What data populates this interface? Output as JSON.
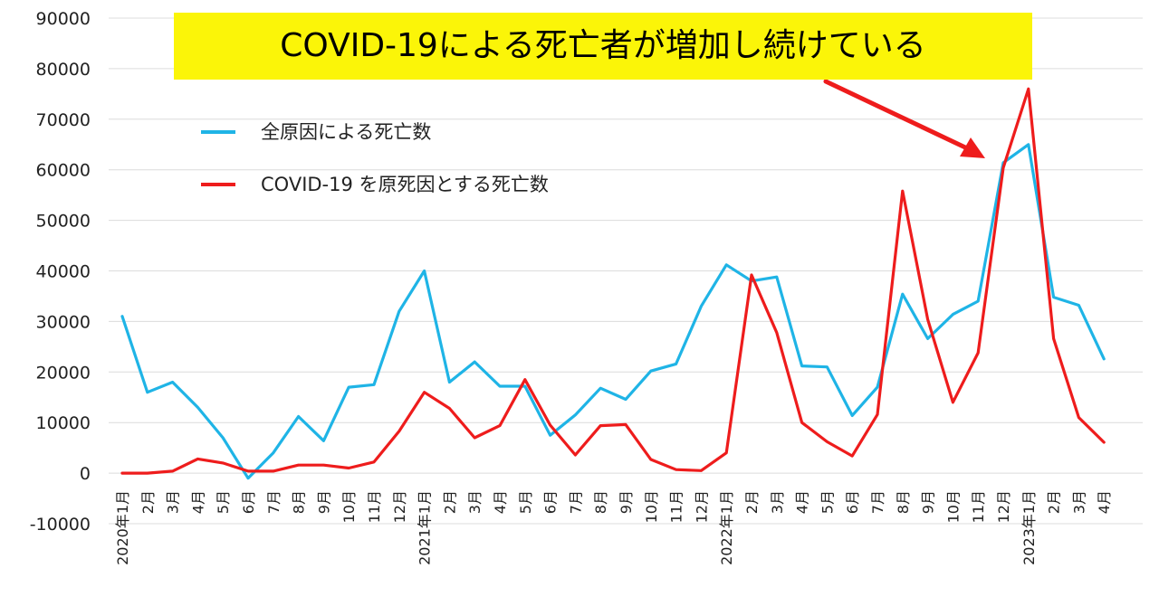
{
  "headline": "COVID-19による死亡者が増加し続けている",
  "colors": {
    "all_cause": "#1fb4e6",
    "covid": "#ee1c1c",
    "banner": "#fbf508",
    "arrow": "#ee1c1c"
  },
  "chart_data": {
    "type": "line",
    "title": "",
    "xlabel": "",
    "ylabel": "",
    "ylim": [
      -10000,
      90000
    ],
    "yticks": [
      "90000",
      "80000",
      "70000",
      "60000",
      "50000",
      "40000",
      "30000",
      "20000",
      "10000",
      "0",
      "-10000"
    ],
    "grid": true,
    "legend_position": "upper-left",
    "categories": [
      "2020年1月",
      "2月",
      "3月",
      "4月",
      "5月",
      "6月",
      "7月",
      "8月",
      "9月",
      "10月",
      "11月",
      "12月",
      "2021年1月",
      "2月",
      "3月",
      "4月",
      "5月",
      "6月",
      "7月",
      "8月",
      "9月",
      "10月",
      "11月",
      "12月",
      "2022年1月",
      "2月",
      "3月",
      "4月",
      "5月",
      "6月",
      "7月",
      "8月",
      "9月",
      "10月",
      "11月",
      "12月",
      "2023年1月",
      "2月",
      "3月",
      "4月"
    ],
    "series": [
      {
        "name": "全原因による死亡数",
        "values": [
          31000,
          16000,
          18000,
          13000,
          7000,
          -1000,
          4000,
          11200,
          6400,
          17000,
          17500,
          32000,
          40000,
          18000,
          22000,
          17200,
          17200,
          7500,
          11500,
          16800,
          14600,
          20200,
          21600,
          33000,
          41200,
          38000,
          38800,
          21200,
          21000,
          11400,
          17000,
          35400,
          26600,
          31400,
          34000,
          61400,
          65000,
          34800,
          33200,
          22600
        ]
      },
      {
        "name": "COVID-19 を原死因とする死亡数",
        "values": [
          0,
          0,
          400,
          2800,
          2000,
          400,
          400,
          1600,
          1600,
          1000,
          2200,
          8300,
          16000,
          12800,
          7000,
          9400,
          18500,
          9500,
          3600,
          9400,
          9600,
          2700,
          700,
          500,
          4000,
          39200,
          27800,
          10000,
          6200,
          3400,
          11600,
          55800,
          30400,
          14000,
          23800,
          60400,
          76000,
          26600,
          11000,
          6100
        ]
      }
    ]
  }
}
